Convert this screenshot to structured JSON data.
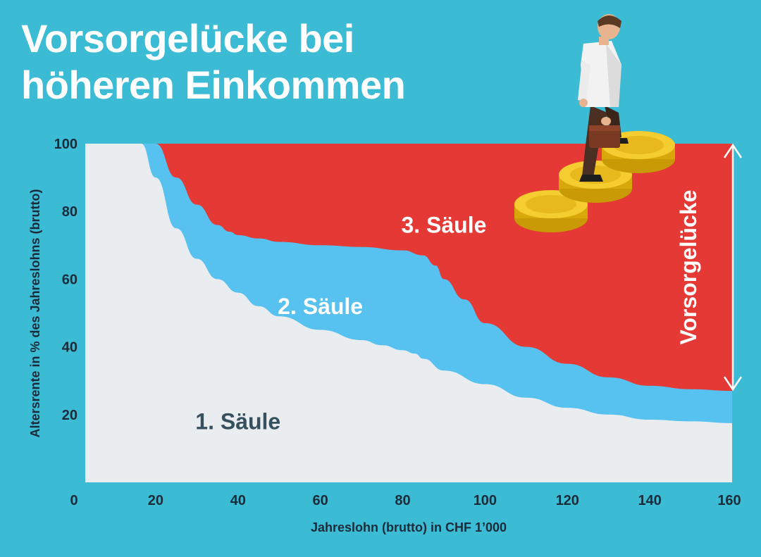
{
  "title": {
    "line1": "Vorsorgelücke bei",
    "line2": "höheren Einkommen"
  },
  "colors": {
    "background": "#3cbcd4",
    "saeule1": "#e9edf0",
    "saeule2": "#57c1ef",
    "saeule3": "#e53935",
    "axis_text": "#1c2b3a",
    "label_dark": "#37505e",
    "white": "#ffffff"
  },
  "chart_data": {
    "type": "area",
    "stacked": true,
    "xlabel": "Jahreslohn (brutto) in CHF 1’000",
    "ylabel": "Altersrente in % des Jahreslohns (brutto)",
    "xlim": [
      0,
      160
    ],
    "ylim": [
      0,
      100
    ],
    "x_ticks": [
      "0",
      "20",
      "40",
      "60",
      "80",
      "100",
      "120",
      "140",
      "160"
    ],
    "y_ticks": [
      "20",
      "40",
      "60",
      "80",
      "100"
    ],
    "x_tick_values": [
      0,
      20,
      40,
      60,
      80,
      100,
      120,
      140,
      160
    ],
    "y_tick_values": [
      20,
      40,
      60,
      80,
      100
    ],
    "series": [
      {
        "name": "1. Säule",
        "label": "1. Säule",
        "color": "#e9edf0",
        "x": [
          0,
          16.5,
          20,
          25,
          30,
          35,
          40,
          45,
          50,
          60,
          70,
          75,
          80,
          83,
          85,
          90,
          100,
          110,
          120,
          130,
          140,
          150,
          160
        ],
        "values": [
          100,
          100,
          90,
          75,
          66,
          60,
          56,
          52,
          49,
          45,
          42,
          40.5,
          39,
          38,
          36.5,
          33,
          29,
          25,
          22,
          20,
          18.5,
          18,
          17.5
        ]
      },
      {
        "name": "2. Säule",
        "label": "2. Säule",
        "color": "#57c1ef",
        "x": [
          16.5,
          20,
          25,
          30,
          35,
          38,
          40,
          45,
          50,
          60,
          70,
          80,
          85,
          88,
          90,
          95,
          100,
          110,
          120,
          130,
          140,
          150,
          160
        ],
        "values": [
          100,
          100,
          90,
          82,
          76,
          74,
          73,
          72,
          71,
          70,
          69.5,
          68.5,
          67,
          64,
          60,
          54,
          47,
          40,
          35,
          31,
          28.5,
          27.5,
          27
        ]
      },
      {
        "name": "3. Säule",
        "label": "3. Säule",
        "color": "#e53935",
        "note_text": "Vorsorgelücke",
        "x": [
          20,
          160
        ],
        "values": [
          100,
          100
        ]
      }
    ],
    "annotations": [
      {
        "text": "1. Säule",
        "x": 40,
        "y": 18
      },
      {
        "text": "2. Säule",
        "x": 60,
        "y": 52
      },
      {
        "text": "3. Säule",
        "x": 90,
        "y": 76
      },
      {
        "text": "Vorsorgelücke",
        "x": 158,
        "y": 64
      }
    ]
  }
}
